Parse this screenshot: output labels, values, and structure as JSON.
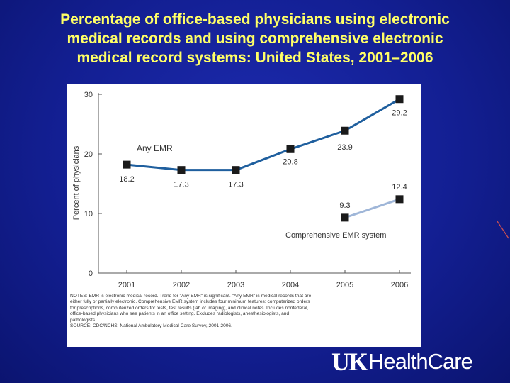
{
  "slide": {
    "title_lines": [
      "Percentage of office-based physicians using electronic",
      "medical records and using comprehensive electronic",
      "medical record systems: United States, 2001–2006"
    ]
  },
  "colors": {
    "background": "#131f93",
    "title": "#ffff66",
    "any_emr_line": "#1f5f9e",
    "comprehensive_line": "#9fb6d8",
    "marker": "#1a1a1a"
  },
  "chart_data": {
    "type": "line",
    "title": "",
    "xlabel": "",
    "ylabel": "Percent of physicians",
    "ylim": [
      0,
      30
    ],
    "y_ticks": [
      0,
      10,
      20,
      30
    ],
    "x": [
      "2001",
      "2002",
      "2003",
      "2004",
      "2005",
      "2006"
    ],
    "grid": false,
    "series": [
      {
        "name": "Any EMR",
        "x": [
          "2001",
          "2002",
          "2003",
          "2004",
          "2005",
          "2006"
        ],
        "values": [
          18.2,
          17.3,
          17.3,
          20.8,
          23.9,
          29.2
        ],
        "labels": [
          "18.2",
          "17.3",
          "17.3",
          "20.8",
          "23.9",
          "29.2"
        ],
        "color": "#1f5f9e"
      },
      {
        "name": "Comprehensive EMR system",
        "x": [
          "2005",
          "2006"
        ],
        "values": [
          9.3,
          12.4
        ],
        "labels": [
          "9.3",
          "12.4"
        ],
        "color": "#9fb6d8"
      }
    ],
    "notes": [
      "NOTES: EMR is electronic medical record. Trend for \"Any EMR\" is significant. \"Any EMR\" is medical records that are",
      "either fully or partially electronic. Comprehensive EMR system includes four minimum features: computerized orders",
      "for prescriptions, computerized orders for tests, test results (lab or imaging), and clinical notes. Includes nonfederal,",
      "office-based physicians who see patients in an office setting. Excludes radiologists, anesthesiologists, and",
      "pathologists.",
      "SOURCE: CDC/NCHS, National Ambulatory Medical Care Survey, 2001-2006."
    ]
  },
  "logo": {
    "uk": "UK",
    "text": "HealthCare"
  }
}
